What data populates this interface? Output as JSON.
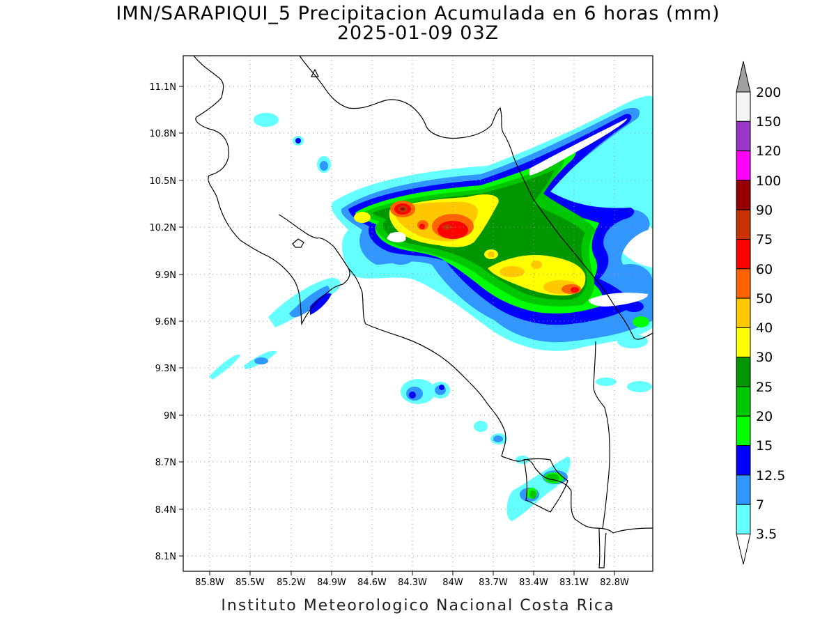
{
  "title_line1": "IMN/SARAPIQUI_5 Precipitacion Acumulada en 6 horas (mm)",
  "title_line2": "2025-01-09 03Z",
  "footer": "Instituto Meteorologico Nacional Costa Rica",
  "map": {
    "lon_range": [
      -86.0,
      -82.55
    ],
    "lat_range": [
      8.0,
      11.3
    ],
    "lon_ticks": [
      "85.8W",
      "85.5W",
      "85.2W",
      "84.9W",
      "84.6W",
      "84.3W",
      "84W",
      "83.7W",
      "83.4W",
      "83.1W",
      "82.8W"
    ],
    "lat_ticks": [
      "11.1N",
      "10.8N",
      "10.5N",
      "10.2N",
      "9.9N",
      "9.6N",
      "9.3N",
      "9N",
      "8.7N",
      "8.4N",
      "8.1N"
    ],
    "grid": "dotted"
  },
  "colorbar": {
    "labels": [
      "200",
      "150",
      "120",
      "100",
      "90",
      "75",
      "60",
      "50",
      "40",
      "30",
      "25",
      "20",
      "15",
      "12.5",
      "7",
      "3.5"
    ],
    "colors": [
      "#a0a0a0",
      "#f4f4f4",
      "#9a35c9",
      "#ff00ff",
      "#960000",
      "#c83200",
      "#ff0000",
      "#ff6400",
      "#ffc800",
      "#ffff00",
      "#009600",
      "#00c800",
      "#00ff00",
      "#0000ff",
      "#3296ff",
      "#64ffff",
      "#ffffff"
    ]
  },
  "precip_colors": {
    "c35": "#64ffff",
    "c7": "#3296ff",
    "c125": "#0000ff",
    "c15": "#00ff00",
    "c20": "#00c800",
    "c25": "#009600",
    "c30": "#ffff00",
    "c40": "#ffc800",
    "c50": "#ff6400",
    "c60": "#ff0000",
    "c75": "#c83200",
    "c90": "#960000"
  }
}
